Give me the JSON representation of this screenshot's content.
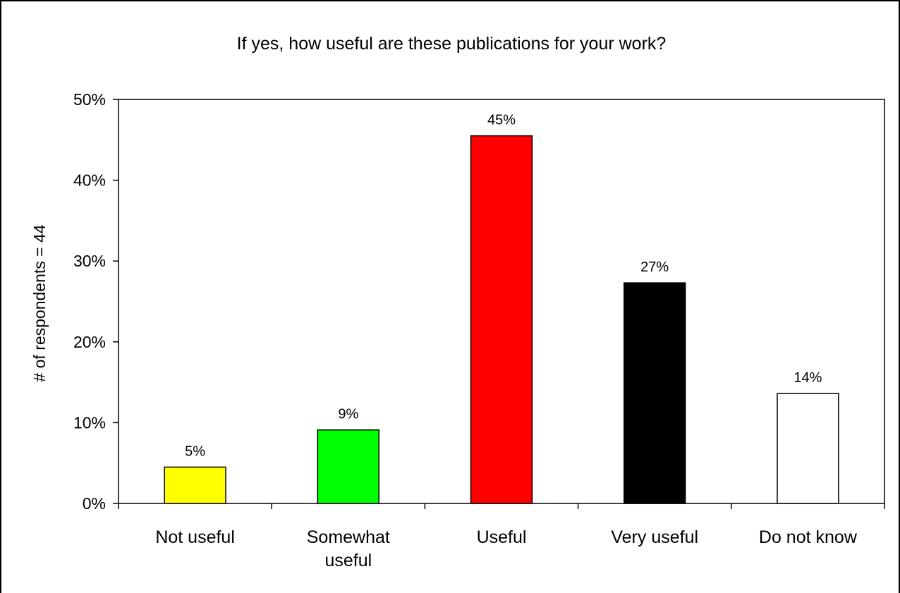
{
  "chart_data": {
    "type": "bar",
    "title": "If yes, how useful are these publications for your work?",
    "xlabel": "",
    "ylabel": "# of respondents = 44",
    "categories": [
      "Not useful",
      "Somewhat useful",
      "Useful",
      "Very useful",
      "Do not know"
    ],
    "category_lines": [
      [
        "Not useful"
      ],
      [
        "Somewhat",
        "useful"
      ],
      [
        "Useful"
      ],
      [
        "Very useful"
      ],
      [
        "Do not know"
      ]
    ],
    "values": [
      4.5,
      9.1,
      45.5,
      27.3,
      13.6
    ],
    "data_labels": [
      "5%",
      "9%",
      "45%",
      "27%",
      "14%"
    ],
    "bar_colors": [
      "#ffff00",
      "#00ff00",
      "#ff0000",
      "#000000",
      "#ffffff"
    ],
    "ylim": [
      0,
      50
    ],
    "yticks": [
      0,
      10,
      20,
      30,
      40,
      50
    ],
    "ytick_labels": [
      "0%",
      "10%",
      "20%",
      "30%",
      "40%",
      "50%"
    ],
    "grid": false,
    "legend": "none"
  }
}
